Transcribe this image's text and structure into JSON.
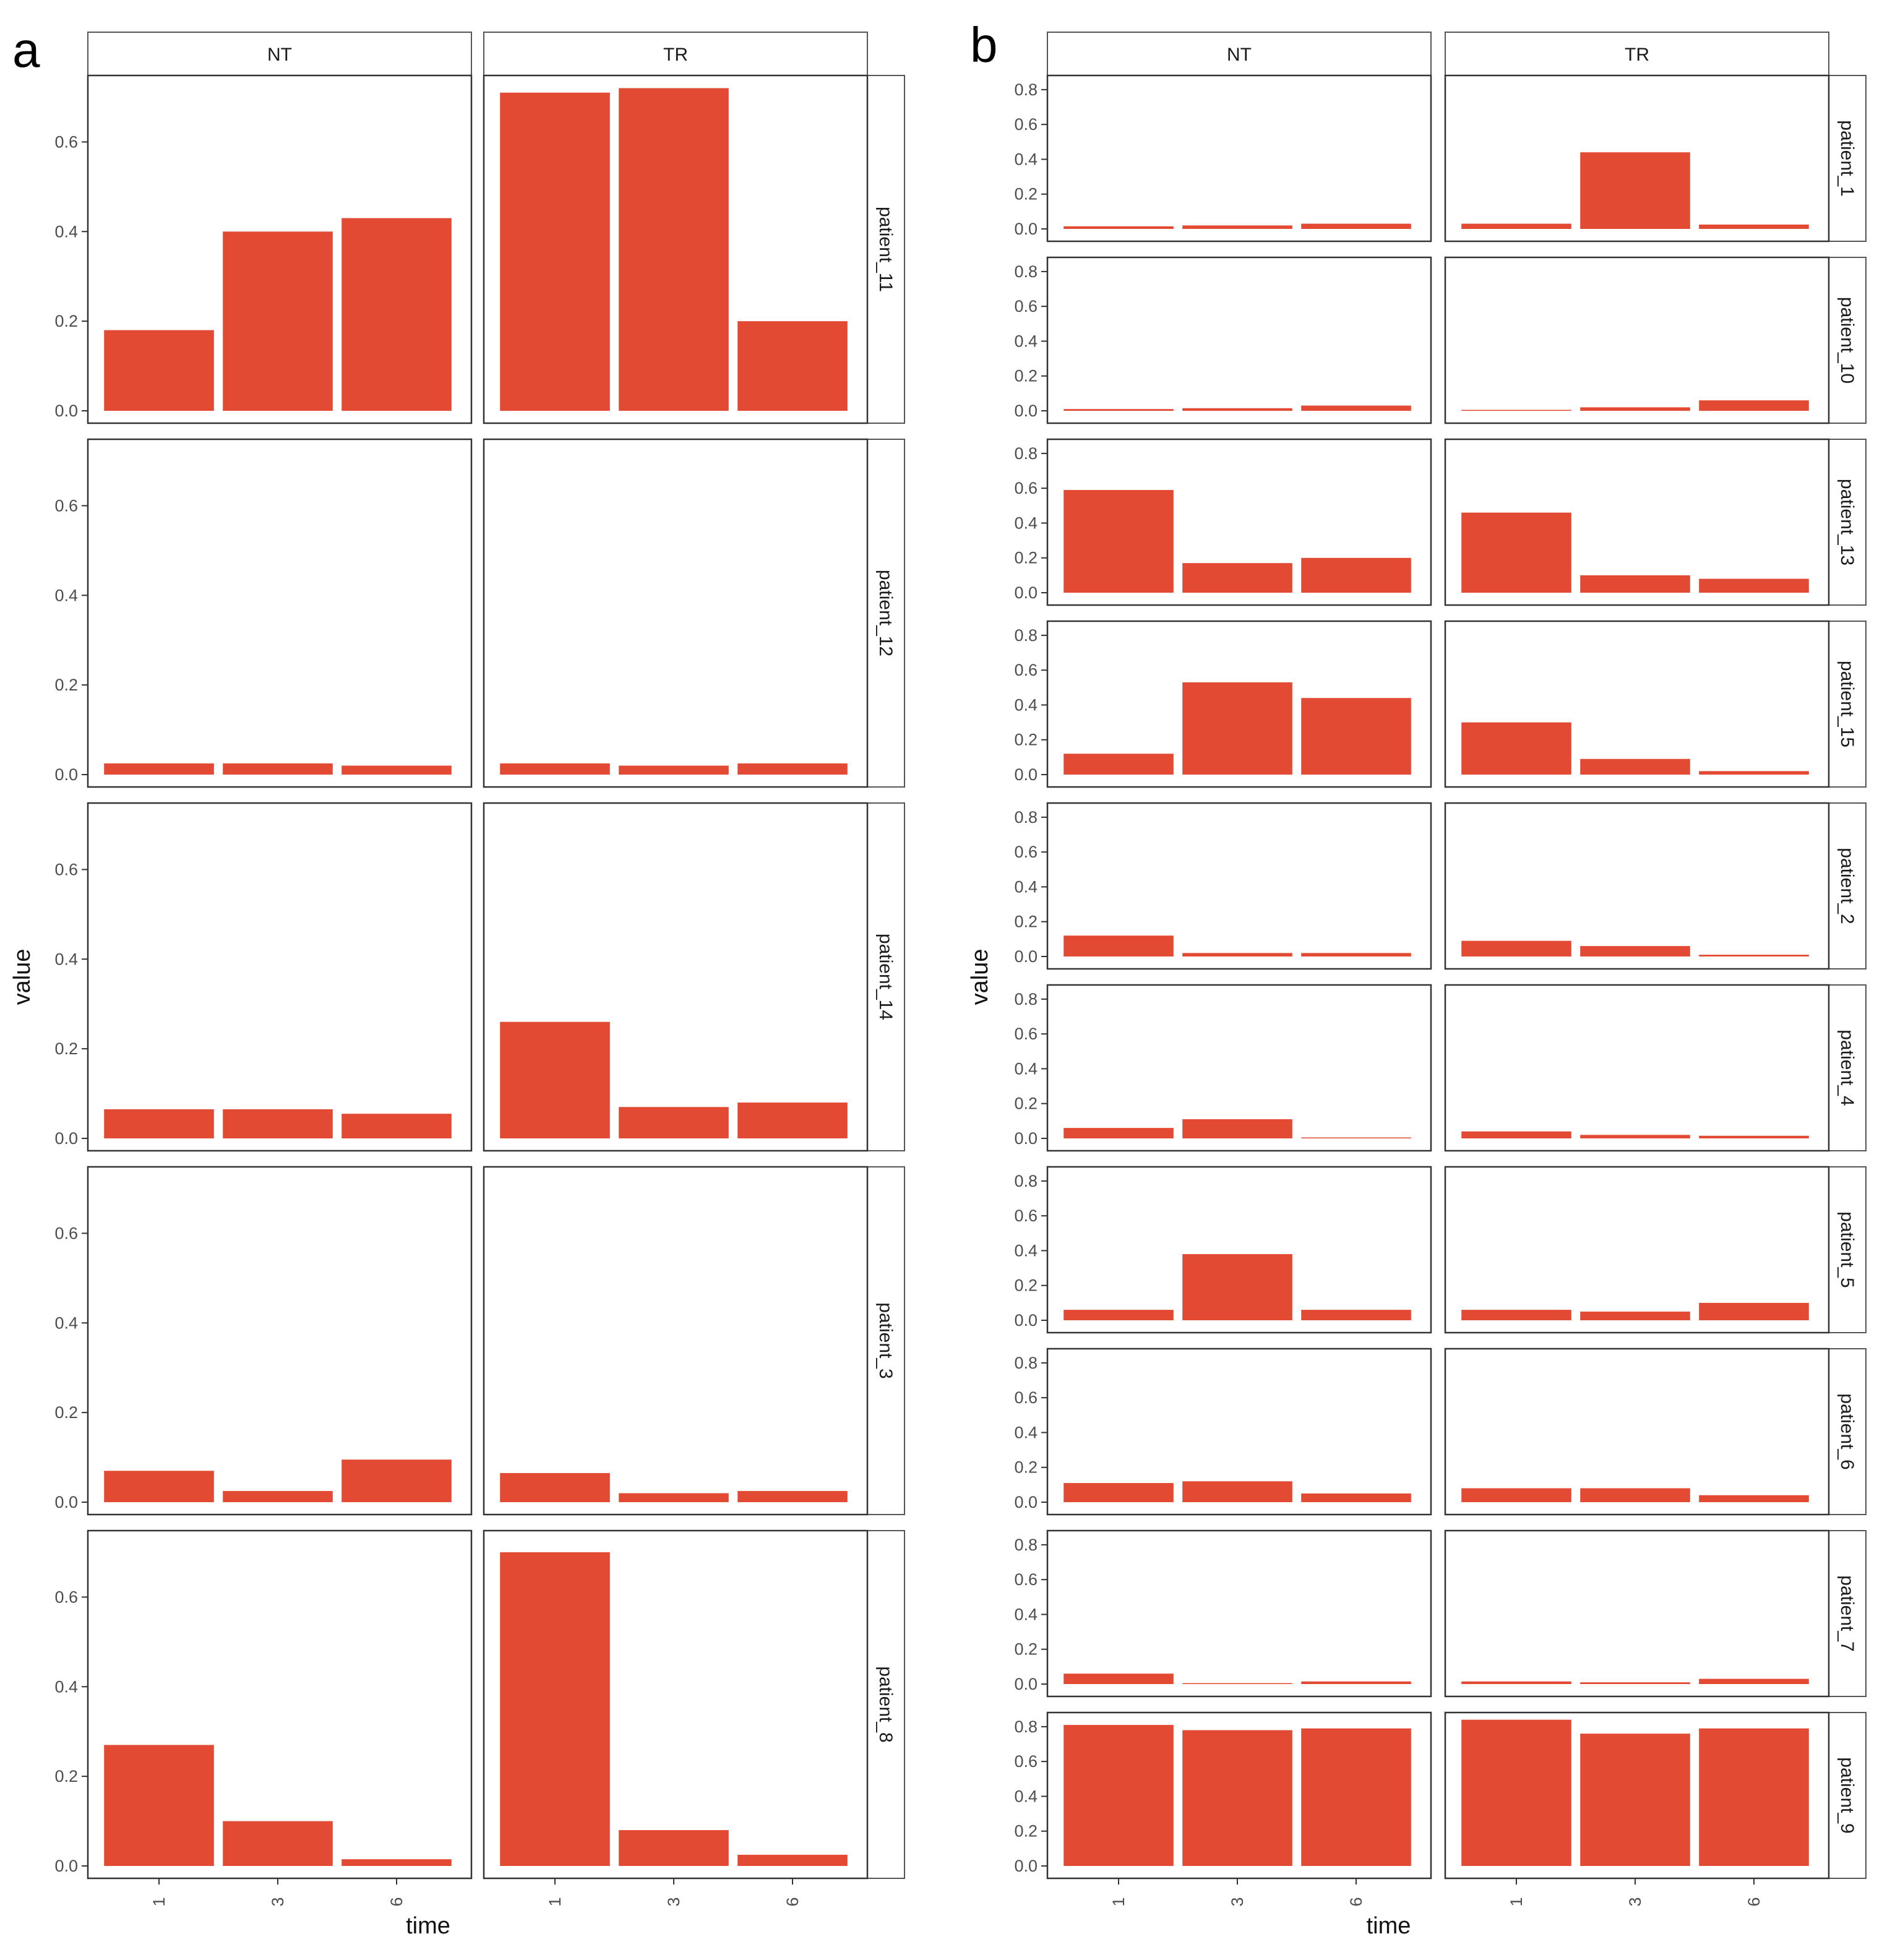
{
  "figure": {
    "colors": {
      "bar": "#e34a33",
      "axis": "#333333",
      "tick_text": "#4d4d4d",
      "strip_bg": "#ffffff"
    }
  },
  "chart_data": [
    {
      "panel_label": "a",
      "type": "bar",
      "facet_columns": [
        "NT",
        "TR"
      ],
      "facet_rows": [
        "patient_11",
        "patient_12",
        "patient_14",
        "patient_3",
        "patient_8"
      ],
      "categories": [
        "1",
        "3",
        "6"
      ],
      "xlabel": "time",
      "ylabel": "value",
      "ylim": [
        0,
        0.74
      ],
      "yticks": [
        0.0,
        0.2,
        0.4,
        0.6
      ],
      "ytick_labels": [
        "0.0",
        "0.2",
        "0.4",
        "0.6"
      ],
      "grid": false,
      "panels": [
        {
          "row": "patient_11",
          "column": "NT",
          "values": [
            0.18,
            0.4,
            0.43
          ]
        },
        {
          "row": "patient_11",
          "column": "TR",
          "values": [
            0.71,
            0.72,
            0.2
          ]
        },
        {
          "row": "patient_12",
          "column": "NT",
          "values": [
            0.025,
            0.025,
            0.02
          ]
        },
        {
          "row": "patient_12",
          "column": "TR",
          "values": [
            0.025,
            0.02,
            0.025
          ]
        },
        {
          "row": "patient_14",
          "column": "NT",
          "values": [
            0.065,
            0.065,
            0.055
          ]
        },
        {
          "row": "patient_14",
          "column": "TR",
          "values": [
            0.26,
            0.07,
            0.08
          ]
        },
        {
          "row": "patient_3",
          "column": "NT",
          "values": [
            0.07,
            0.025,
            0.095
          ]
        },
        {
          "row": "patient_3",
          "column": "TR",
          "values": [
            0.065,
            0.02,
            0.025
          ]
        },
        {
          "row": "patient_8",
          "column": "NT",
          "values": [
            0.27,
            0.1,
            0.015
          ]
        },
        {
          "row": "patient_8",
          "column": "TR",
          "values": [
            0.7,
            0.08,
            0.025
          ]
        }
      ]
    },
    {
      "panel_label": "b",
      "type": "bar",
      "facet_columns": [
        "NT",
        "TR"
      ],
      "facet_rows": [
        "patient_1",
        "patient_10",
        "patient_13",
        "patient_15",
        "patient_2",
        "patient_4",
        "patient_5",
        "patient_6",
        "patient_7",
        "patient_9"
      ],
      "categories": [
        "1",
        "3",
        "6"
      ],
      "xlabel": "time",
      "ylabel": "value",
      "ylim": [
        0,
        0.86
      ],
      "yticks": [
        0.0,
        0.2,
        0.4,
        0.6,
        0.8
      ],
      "ytick_labels": [
        "0.0",
        "0.2",
        "0.4",
        "0.6",
        "0.8"
      ],
      "grid": false,
      "panels": [
        {
          "row": "patient_1",
          "column": "NT",
          "values": [
            0.015,
            0.02,
            0.03
          ]
        },
        {
          "row": "patient_1",
          "column": "TR",
          "values": [
            0.03,
            0.44,
            0.025
          ]
        },
        {
          "row": "patient_10",
          "column": "NT",
          "values": [
            0.01,
            0.015,
            0.03
          ]
        },
        {
          "row": "patient_10",
          "column": "TR",
          "values": [
            0.005,
            0.02,
            0.06
          ]
        },
        {
          "row": "patient_13",
          "column": "NT",
          "values": [
            0.59,
            0.17,
            0.2
          ]
        },
        {
          "row": "patient_13",
          "column": "TR",
          "values": [
            0.46,
            0.1,
            0.08
          ]
        },
        {
          "row": "patient_15",
          "column": "NT",
          "values": [
            0.12,
            0.53,
            0.44
          ]
        },
        {
          "row": "patient_15",
          "column": "TR",
          "values": [
            0.3,
            0.09,
            0.02
          ]
        },
        {
          "row": "patient_2",
          "column": "NT",
          "values": [
            0.12,
            0.02,
            0.02
          ]
        },
        {
          "row": "patient_2",
          "column": "TR",
          "values": [
            0.09,
            0.06,
            0.01
          ]
        },
        {
          "row": "patient_4",
          "column": "NT",
          "values": [
            0.06,
            0.11,
            0.005
          ]
        },
        {
          "row": "patient_4",
          "column": "TR",
          "values": [
            0.04,
            0.02,
            0.015
          ]
        },
        {
          "row": "patient_5",
          "column": "NT",
          "values": [
            0.06,
            0.38,
            0.06
          ]
        },
        {
          "row": "patient_5",
          "column": "TR",
          "values": [
            0.06,
            0.05,
            0.1
          ]
        },
        {
          "row": "patient_6",
          "column": "NT",
          "values": [
            0.11,
            0.12,
            0.05
          ]
        },
        {
          "row": "patient_6",
          "column": "TR",
          "values": [
            0.08,
            0.08,
            0.04
          ]
        },
        {
          "row": "patient_7",
          "column": "NT",
          "values": [
            0.06,
            0.005,
            0.015
          ]
        },
        {
          "row": "patient_7",
          "column": "TR",
          "values": [
            0.015,
            0.01,
            0.03
          ]
        },
        {
          "row": "patient_9",
          "column": "NT",
          "values": [
            0.81,
            0.78,
            0.79
          ]
        },
        {
          "row": "patient_9",
          "column": "TR",
          "values": [
            0.84,
            0.76,
            0.79
          ]
        }
      ]
    }
  ]
}
